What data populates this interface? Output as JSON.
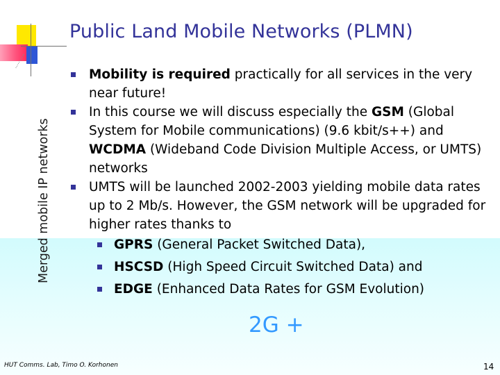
{
  "side_label": "Merged mobile IP networks",
  "title": "Public Land Mobile Networks (PLMN)",
  "bullets": {
    "b1": {
      "bold": "Mobility is required",
      "text": " practically for all services in the very near future!"
    },
    "b2": {
      "t1": "In this course we will discuss especially the ",
      "bold1": "GSM",
      "t2": " (Global System for Mobile communications) (9.6 kbit/s++) and ",
      "bold2": "WCDMA",
      "t3": " (Wideband Code Division Multiple Access, or UMTS) networks"
    },
    "b3": {
      "text": "UMTS will be launched 2002-2003 yielding mobile data rates up to 2 Mb/s. However, the GSM network will be upgraded for higher rates thanks to"
    }
  },
  "sub_bullets": {
    "s1": {
      "bold": "GPRS",
      "text": " (General Packet Switched Data),"
    },
    "s2": {
      "bold": "HSCSD",
      "text": " (High Speed Circuit Switched Data) and"
    },
    "s3": {
      "bold": "EDGE",
      "text": " (Enhanced Data Rates for GSM Evolution)"
    }
  },
  "label_2g": "2G +",
  "footer": "HUT Comms. Lab, Timo O. Korhonen",
  "page_number": "14",
  "colors": {
    "title": "#333399",
    "bullet": "#333399",
    "accent": "#3399ff",
    "band": "#d2fbfd"
  }
}
